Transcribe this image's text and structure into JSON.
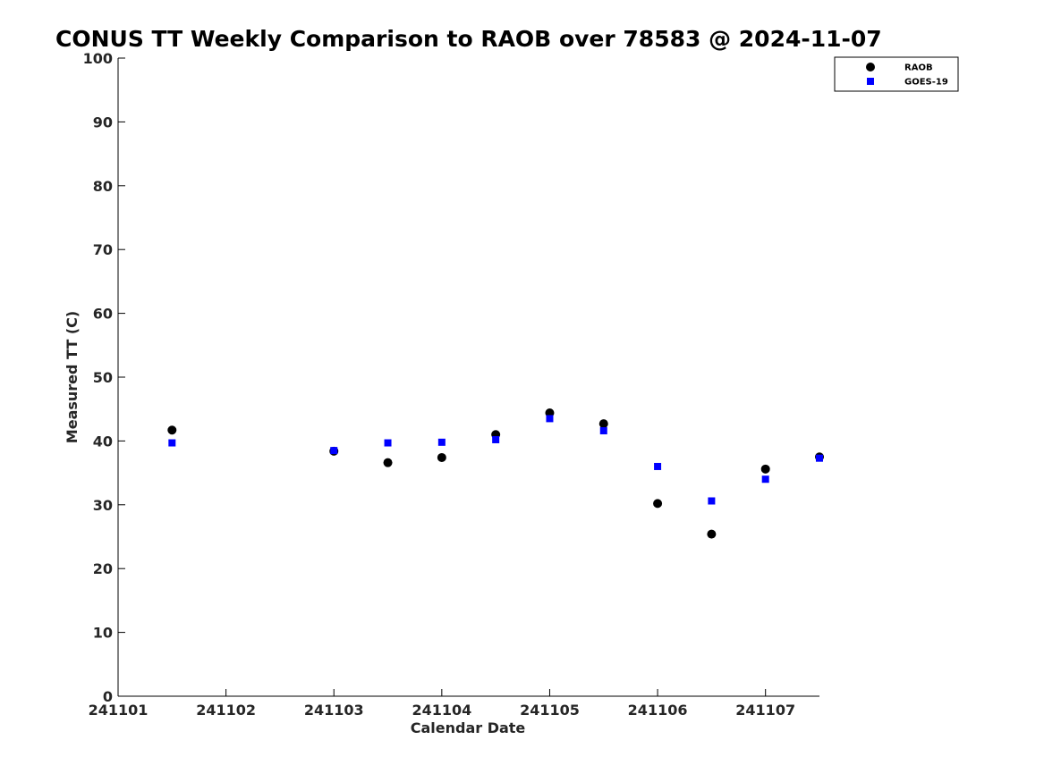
{
  "chart_data": {
    "type": "scatter",
    "title": "CONUS TT Weekly Comparison to RAOB over 78583 @ 2024-11-07",
    "xlabel": "Calendar Date",
    "ylabel": "Measured TT (C)",
    "xlim": [
      "2024-11-01",
      "2024-11-07 12:00"
    ],
    "ylim": [
      0,
      100
    ],
    "x_ticks": [
      {
        "label": "241101",
        "value": "2024-11-01"
      },
      {
        "label": "241102",
        "value": "2024-11-02"
      },
      {
        "label": "241103",
        "value": "2024-11-03"
      },
      {
        "label": "241104",
        "value": "2024-11-04"
      },
      {
        "label": "241105",
        "value": "2024-11-05"
      },
      {
        "label": "241106",
        "value": "2024-11-06"
      },
      {
        "label": "241107",
        "value": "2024-11-07"
      }
    ],
    "y_ticks": [
      0,
      10,
      20,
      30,
      40,
      50,
      60,
      70,
      80,
      90,
      100
    ],
    "grid": false,
    "legend_position": "top-right",
    "series": [
      {
        "name": "RAOB",
        "marker": "circle",
        "color": "#000000",
        "points": [
          {
            "x": "2024-11-01 12:00",
            "y": 41.7
          },
          {
            "x": "2024-11-03 00:00",
            "y": 38.4
          },
          {
            "x": "2024-11-03 12:00",
            "y": 36.6
          },
          {
            "x": "2024-11-04 00:00",
            "y": 37.4
          },
          {
            "x": "2024-11-04 12:00",
            "y": 41.0
          },
          {
            "x": "2024-11-05 00:00",
            "y": 44.4
          },
          {
            "x": "2024-11-05 12:00",
            "y": 42.7
          },
          {
            "x": "2024-11-06 00:00",
            "y": 30.2
          },
          {
            "x": "2024-11-06 12:00",
            "y": 25.4
          },
          {
            "x": "2024-11-07 00:00",
            "y": 35.6
          },
          {
            "x": "2024-11-07 12:00",
            "y": 37.5
          }
        ]
      },
      {
        "name": "GOES-19",
        "marker": "square",
        "color": "#0000ff",
        "points": [
          {
            "x": "2024-11-01 12:00",
            "y": 39.7
          },
          {
            "x": "2024-11-03 00:00",
            "y": 38.5
          },
          {
            "x": "2024-11-03 12:00",
            "y": 39.7
          },
          {
            "x": "2024-11-04 00:00",
            "y": 39.8
          },
          {
            "x": "2024-11-04 12:00",
            "y": 40.2
          },
          {
            "x": "2024-11-05 00:00",
            "y": 43.5
          },
          {
            "x": "2024-11-05 12:00",
            "y": 41.6
          },
          {
            "x": "2024-11-06 00:00",
            "y": 36.0
          },
          {
            "x": "2024-11-06 12:00",
            "y": 30.6
          },
          {
            "x": "2024-11-07 00:00",
            "y": 34.0
          },
          {
            "x": "2024-11-07 12:00",
            "y": 37.3
          }
        ]
      }
    ]
  }
}
